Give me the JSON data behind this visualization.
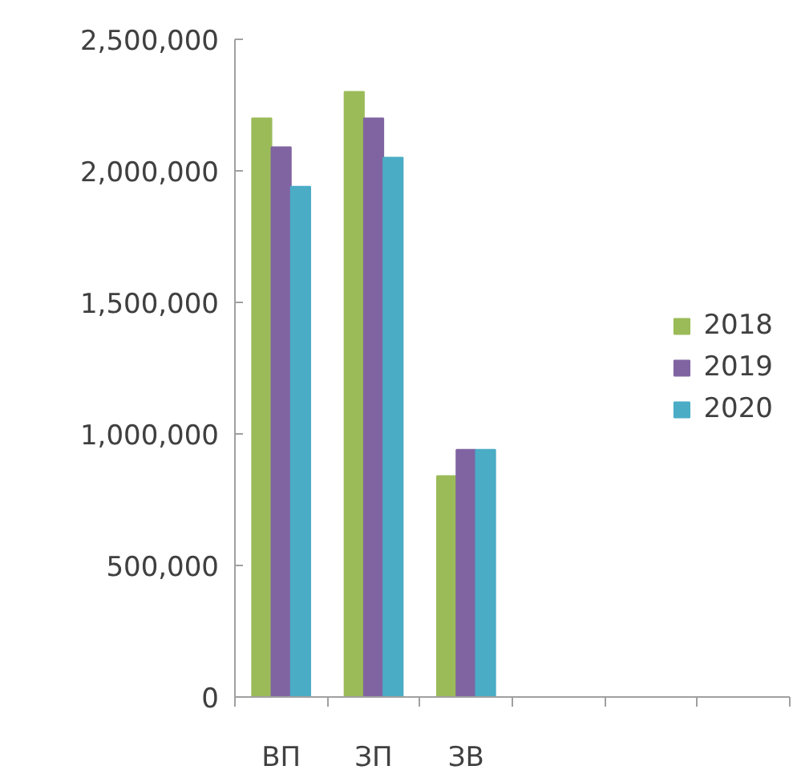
{
  "chart_data": {
    "type": "bar",
    "categories": [
      "ВП",
      "ЗП",
      "ЗВ",
      null,
      null,
      null
    ],
    "series": [
      {
        "name": "2018",
        "color": "#9bbb59",
        "values": [
          2200000,
          2300000,
          840000,
          null,
          null,
          null
        ]
      },
      {
        "name": "2019",
        "color": "#8064a2",
        "values": [
          2090000,
          2200000,
          940000,
          null,
          null,
          null
        ]
      },
      {
        "name": "2020",
        "color": "#4bacc6",
        "values": [
          1940000,
          2050000,
          940000,
          null,
          null,
          null
        ]
      }
    ],
    "ylim": [
      0,
      2500000
    ],
    "yticks": [
      {
        "value": 0,
        "label": "0"
      },
      {
        "value": 500000,
        "label": "500,000"
      },
      {
        "value": 1000000,
        "label": "1,000,000"
      },
      {
        "value": 1500000,
        "label": "1,500,000"
      },
      {
        "value": 2000000,
        "label": "2,000,000"
      },
      {
        "value": 2500000,
        "label": "2,500,000"
      }
    ],
    "grid": false,
    "legend": "right"
  }
}
